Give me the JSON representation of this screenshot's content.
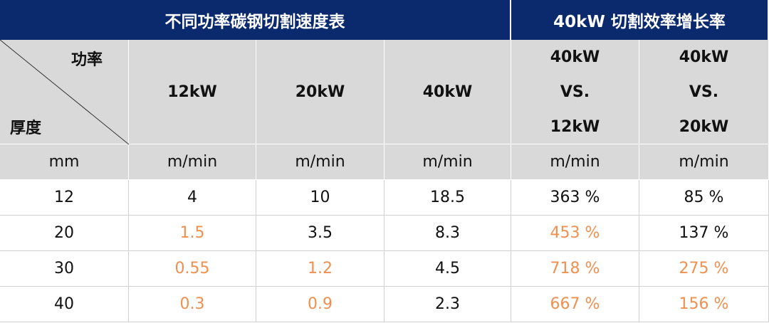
{
  "title_row": [
    "不同功率碳钢切割速度表",
    "40kW 切割效率增长率"
  ],
  "header": {
    "corner_top": "功率",
    "corner_bottom": "厚度",
    "columns": [
      [
        "12kW"
      ],
      [
        "20kW"
      ],
      [
        "40kW"
      ],
      [
        "40kW",
        "VS.",
        "12kW"
      ],
      [
        "40kW",
        "VS.",
        "20kW"
      ]
    ]
  },
  "units": [
    "mm",
    "m/min",
    "m/min",
    "m/min",
    "m/min",
    "m/min"
  ],
  "highlight_color": "#f0904f",
  "rows": [
    {
      "cells": [
        "12",
        "4",
        "10",
        "18.5",
        "363 %",
        "85 %"
      ],
      "highlighted": []
    },
    {
      "cells": [
        "20",
        "1.5",
        "3.5",
        "8.3",
        "453 %",
        "137 %"
      ],
      "highlighted": [
        1,
        4
      ]
    },
    {
      "cells": [
        "30",
        "0.55",
        "1.2",
        "4.5",
        "718 %",
        "275 %"
      ],
      "highlighted": [
        1,
        2,
        4,
        5
      ]
    },
    {
      "cells": [
        "40",
        "0.3",
        "0.9",
        "2.3",
        "667 %",
        "156 %"
      ],
      "highlighted": [
        1,
        2,
        4,
        5
      ]
    }
  ]
}
